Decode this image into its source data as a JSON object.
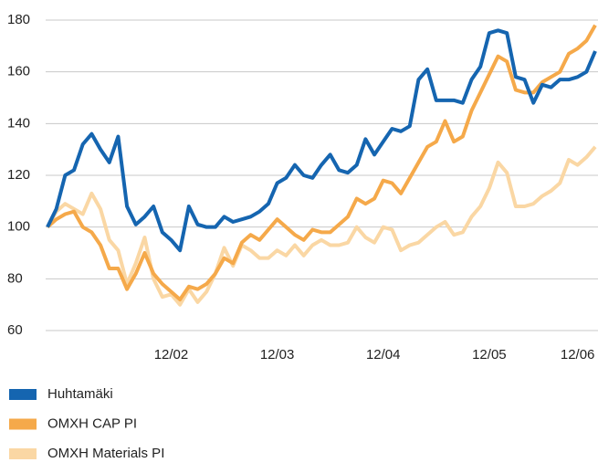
{
  "chart_data": {
    "type": "line",
    "x": [
      0,
      1,
      2,
      3,
      4,
      5,
      6,
      7,
      8,
      9,
      10,
      11,
      12,
      13,
      14,
      15,
      16,
      17,
      18,
      19,
      20,
      21,
      22,
      23,
      24,
      25,
      26,
      27,
      28,
      29,
      30,
      31,
      32,
      33,
      34,
      35,
      36,
      37,
      38,
      39,
      40,
      41,
      42,
      43,
      44,
      45,
      46,
      47,
      48,
      49,
      50,
      51,
      52,
      53,
      54,
      55,
      56,
      57,
      58,
      59,
      60,
      61,
      62
    ],
    "xlim": [
      0,
      62
    ],
    "xticks": [
      {
        "value": 14,
        "label": "12/02"
      },
      {
        "value": 26,
        "label": "12/03"
      },
      {
        "value": 38,
        "label": "12/04"
      },
      {
        "value": 50,
        "label": "12/05"
      },
      {
        "value": 60,
        "label": "12/06"
      }
    ],
    "ylim": [
      60,
      180
    ],
    "yticks": [
      60,
      80,
      100,
      120,
      140,
      160,
      180
    ],
    "grid": true,
    "legend": "bottom",
    "series": [
      {
        "name": "Huhtamäki",
        "color": "#1565b0",
        "values": [
          100,
          107,
          120,
          122,
          132,
          136,
          130,
          125,
          135,
          108,
          101,
          104,
          108,
          98,
          95,
          91,
          108,
          101,
          100,
          100,
          104,
          102,
          103,
          104,
          106,
          109,
          117,
          119,
          124,
          120,
          119,
          124,
          128,
          122,
          121,
          124,
          134,
          128,
          133,
          138,
          137,
          139,
          157,
          161,
          149,
          149,
          149,
          148,
          157,
          162,
          175,
          176,
          175,
          158,
          157,
          148,
          155,
          154,
          157,
          157,
          158,
          160,
          168
        ]
      },
      {
        "name": "OMXH CAP PI",
        "color": "#f5a94a",
        "values": [
          100,
          103,
          105,
          106,
          100,
          98,
          93,
          84,
          84,
          76,
          82,
          90,
          82,
          78,
          75,
          72,
          77,
          76,
          78,
          82,
          88,
          86,
          94,
          97,
          95,
          99,
          103,
          100,
          97,
          95,
          99,
          98,
          98,
          101,
          104,
          111,
          109,
          111,
          118,
          117,
          113,
          119,
          125,
          131,
          133,
          141,
          133,
          135,
          145,
          152,
          159,
          166,
          164,
          153,
          152,
          152,
          156,
          158,
          160,
          167,
          169,
          172,
          178
        ]
      },
      {
        "name": "OMXH Materials PI",
        "color": "#fad7a4",
        "values": [
          100,
          106,
          109,
          107,
          105,
          113,
          107,
          95,
          91,
          78,
          86,
          96,
          80,
          73,
          74,
          70,
          76,
          71,
          75,
          82,
          92,
          85,
          93,
          91,
          88,
          88,
          91,
          89,
          93,
          89,
          93,
          95,
          93,
          93,
          94,
          100,
          96,
          94,
          100,
          99,
          91,
          93,
          94,
          97,
          100,
          102,
          97,
          98,
          104,
          108,
          115,
          125,
          121,
          108,
          108,
          109,
          112,
          114,
          117,
          126,
          124,
          127,
          131
        ]
      }
    ]
  }
}
